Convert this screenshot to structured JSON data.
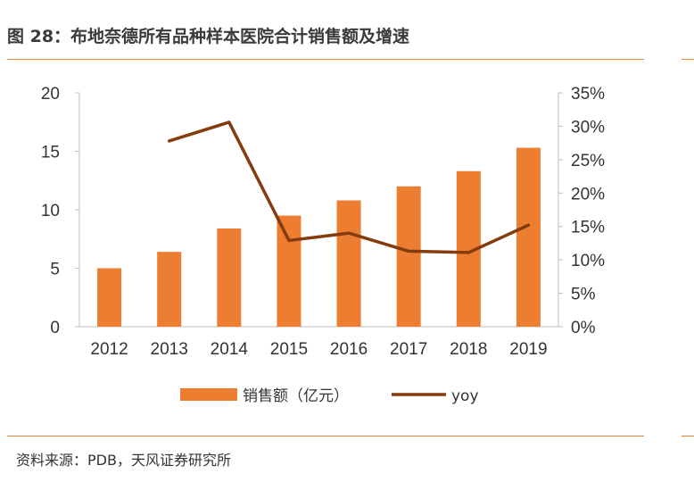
{
  "header": {
    "title": "图 28：布地奈德所有品种样本医院合计销售额及增速"
  },
  "footer": {
    "source": "资料来源：PDB，天风证券研究所"
  },
  "colors": {
    "accent": "#e8833a",
    "bar": "#ed7d31",
    "line": "#843c0c"
  },
  "chart_data": {
    "type": "bar",
    "title": "",
    "categories": [
      "2012",
      "2013",
      "2014",
      "2015",
      "2016",
      "2017",
      "2018",
      "2019"
    ],
    "series": [
      {
        "name": "销售额（亿元）",
        "type": "bar",
        "axis": "left",
        "values": [
          5.0,
          6.4,
          8.4,
          9.5,
          10.8,
          12.0,
          13.3,
          15.3
        ]
      },
      {
        "name": "yoy",
        "type": "line",
        "axis": "right",
        "values": [
          null,
          27.8,
          30.6,
          12.9,
          14.0,
          11.3,
          11.1,
          15.2
        ]
      }
    ],
    "ylim_left": [
      0,
      20
    ],
    "yticks_left": [
      "0",
      "5",
      "10",
      "15",
      "20"
    ],
    "ylim_right": [
      0,
      35
    ],
    "yticks_right": [
      "0%",
      "5%",
      "10%",
      "15%",
      "20%",
      "25%",
      "30%",
      "35%"
    ],
    "grid": false,
    "legend_position": "bottom"
  }
}
